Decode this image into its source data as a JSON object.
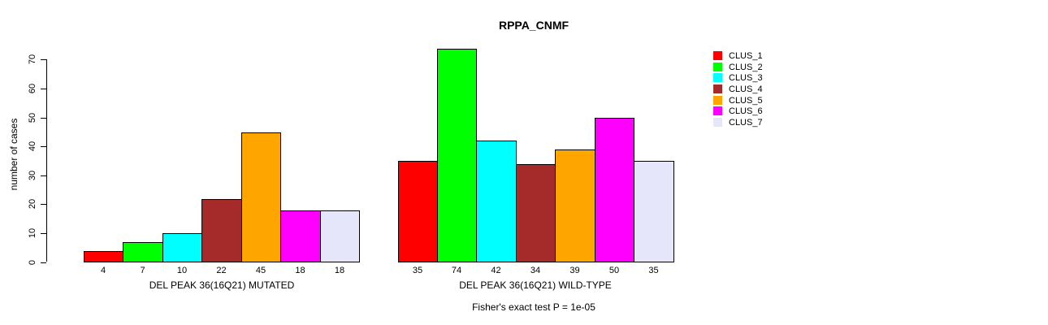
{
  "chart_data": {
    "type": "bar",
    "title": "RPPA_CNMF",
    "ylabel": "number of cases",
    "ylim": [
      0,
      70
    ],
    "yticks": [
      0,
      10,
      20,
      30,
      40,
      50,
      60,
      70
    ],
    "grid": false,
    "legend_position": "right",
    "annotation": "Fisher's exact test P = 1e-05",
    "series": [
      {
        "name": "CLUS_1",
        "color": "#FF0000"
      },
      {
        "name": "CLUS_2",
        "color": "#00FF00"
      },
      {
        "name": "CLUS_3",
        "color": "#00FFFF"
      },
      {
        "name": "CLUS_4",
        "color": "#A52A2A"
      },
      {
        "name": "CLUS_5",
        "color": "#FFA500"
      },
      {
        "name": "CLUS_6",
        "color": "#FF00FF"
      },
      {
        "name": "CLUS_7",
        "color": "#E6E6FA"
      }
    ],
    "panels": [
      {
        "xlabel": "DEL PEAK 36(16Q21) MUTATED",
        "bar_labels": [
          "4",
          "7",
          "10",
          "22",
          "45",
          "18",
          "18"
        ],
        "values": [
          4,
          7,
          10,
          22,
          45,
          18,
          18
        ]
      },
      {
        "xlabel": "DEL PEAK 36(16Q21) WILD-TYPE",
        "bar_labels": [
          "35",
          "74",
          "42",
          "34",
          "39",
          "50",
          "35"
        ],
        "values": [
          35,
          74,
          42,
          34,
          39,
          50,
          35
        ]
      }
    ]
  }
}
